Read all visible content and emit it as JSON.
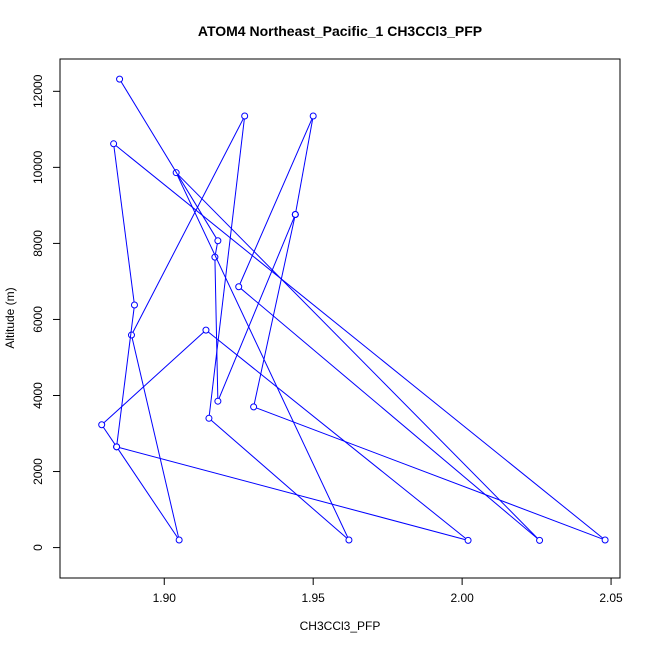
{
  "chart_data": {
    "type": "line",
    "title": "ATOM4 Northeast_Pacific_1 CH3CCl3_PFP",
    "xlabel": "CH3CCl3_PFP",
    "ylabel": "Altitude (m)",
    "xlim": [
      1.865,
      2.053
    ],
    "ylim": [
      -800,
      12850
    ],
    "x_ticks": [
      1.9,
      1.95,
      2.0,
      2.05
    ],
    "x_tick_labels": [
      "1.90",
      "1.95",
      "2.00",
      "2.05"
    ],
    "y_ticks": [
      0,
      2000,
      4000,
      6000,
      8000,
      10000,
      12000
    ],
    "y_tick_labels": [
      "0",
      "2000",
      "4000",
      "6000",
      "8000",
      "10000",
      "12000"
    ],
    "line_color": "#0000ff",
    "marker": "open-circle",
    "series": [
      {
        "points": [
          {
            "x": 1.885,
            "y": 12320
          },
          {
            "x": 1.918,
            "y": 8070
          },
          {
            "x": 1.917,
            "y": 7640
          },
          {
            "x": 1.918,
            "y": 3850
          },
          {
            "x": 1.944,
            "y": 8760
          },
          {
            "x": 1.93,
            "y": 3700
          },
          {
            "x": 2.048,
            "y": 200
          },
          {
            "x": 1.883,
            "y": 10620
          },
          {
            "x": 1.89,
            "y": 6380
          },
          {
            "x": 1.884,
            "y": 2650
          },
          {
            "x": 2.002,
            "y": 190
          },
          {
            "x": 1.914,
            "y": 5720
          },
          {
            "x": 1.879,
            "y": 3230
          },
          {
            "x": 1.884,
            "y": 2650
          },
          {
            "x": 1.905,
            "y": 200
          },
          {
            "x": 1.889,
            "y": 5590
          },
          {
            "x": 1.927,
            "y": 11350
          },
          {
            "x": 1.915,
            "y": 3400
          },
          {
            "x": 1.962,
            "y": 200
          },
          {
            "x": 1.904,
            "y": 9860
          },
          {
            "x": 2.026,
            "y": 190
          },
          {
            "x": 1.925,
            "y": 6860
          },
          {
            "x": 1.95,
            "y": 11350
          },
          {
            "x": 1.944,
            "y": 8760
          }
        ]
      }
    ]
  }
}
